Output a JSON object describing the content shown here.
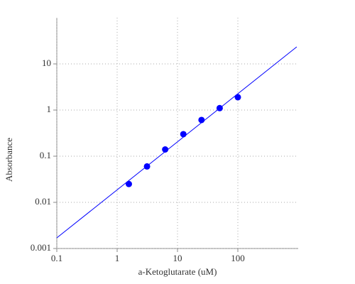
{
  "chart_data": {
    "type": "scatter",
    "x_label": "a-Ketoglutarate (uM)",
    "y_label": "Absorbance",
    "log_x": true,
    "log_y": true,
    "grid": true,
    "xlim": [
      0.1,
      1000
    ],
    "ylim": [
      0.001,
      100
    ],
    "xticks": [
      0.1,
      1,
      10,
      100
    ],
    "yticks": [
      0.001,
      0.01,
      0.1,
      1,
      10
    ],
    "x": [
      1.5625,
      3.125,
      6.25,
      12.5,
      25,
      50,
      100
    ],
    "values": [
      0.025,
      0.06,
      0.14,
      0.3,
      0.61,
      1.1,
      1.9
    ],
    "color": "#0000ff",
    "fit_line": {
      "x": [
        0.1,
        946
      ],
      "values": [
        0.0017,
        23.4
      ],
      "color": "#0000ff"
    }
  }
}
